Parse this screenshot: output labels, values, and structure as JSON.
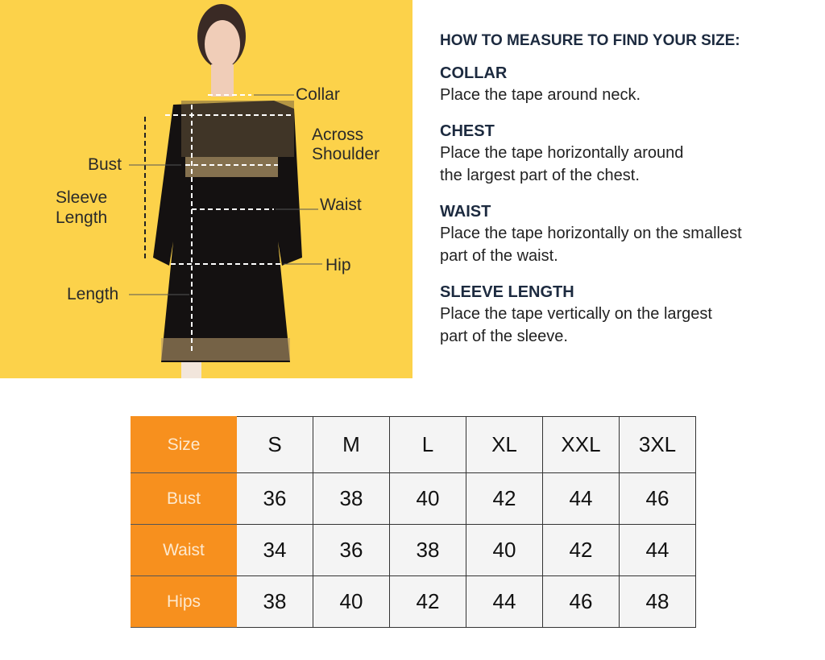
{
  "figure": {
    "labels": {
      "collar": "Collar",
      "across_shoulder_1": "Across",
      "across_shoulder_2": "Shoulder",
      "bust": "Bust",
      "sleeve_1": "Sleeve",
      "sleeve_2": "Length",
      "waist": "Waist",
      "hip": "Hip",
      "length": "Length"
    },
    "background_color": "#fcd24a"
  },
  "guide": {
    "title": "HOW TO MEASURE TO FIND YOUR SIZE:",
    "sections": [
      {
        "heading": "COLLAR",
        "lines": [
          "Place the tape around neck."
        ]
      },
      {
        "heading": "CHEST",
        "lines": [
          "Place the tape horizontally around",
          "the largest part of the chest."
        ]
      },
      {
        "heading": "WAIST",
        "lines": [
          "Place the tape horizontally on the smallest",
          "part of the waist."
        ]
      },
      {
        "heading": "SLEEVE LENGTH",
        "lines": [
          "Place the tape vertically on the largest",
          "part of the sleeve."
        ]
      }
    ]
  },
  "table": {
    "header_color": "#f7901e",
    "columns": [
      "Size",
      "S",
      "M",
      "L",
      "XL",
      "XXL",
      "3XL"
    ],
    "rows": [
      {
        "label": "Bust",
        "values": [
          "36",
          "38",
          "40",
          "42",
          "44",
          "46"
        ]
      },
      {
        "label": "Waist",
        "values": [
          "34",
          "36",
          "38",
          "40",
          "42",
          "44"
        ]
      },
      {
        "label": "Hips",
        "values": [
          "38",
          "40",
          "42",
          "44",
          "46",
          "48"
        ]
      }
    ]
  }
}
